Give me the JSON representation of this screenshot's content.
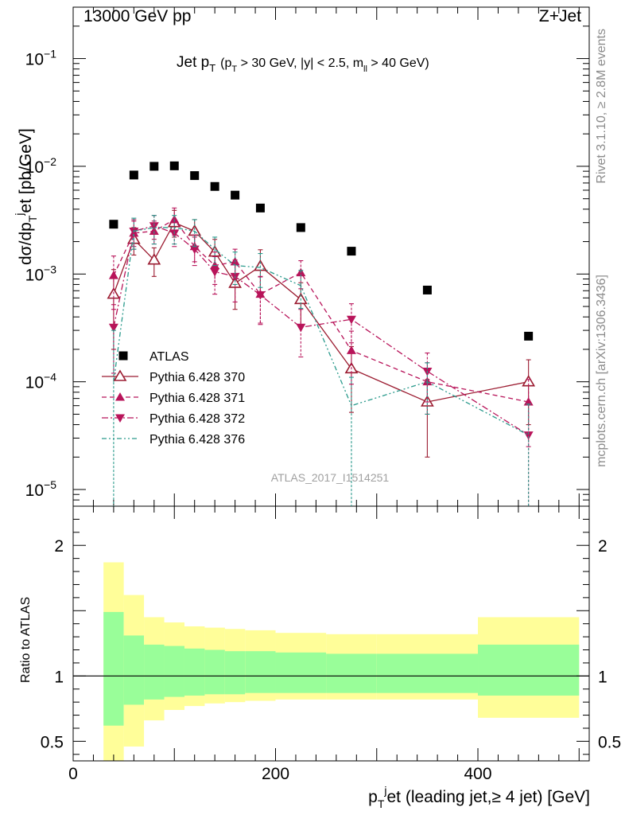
{
  "header": {
    "left": "13000 GeV pp",
    "right": "Z+Jet"
  },
  "side_labels": {
    "rivet": "Rivet 3.1.10, ≥ 2.8M events",
    "mcplots": "mcplots.cern.ch [arXiv:1306.3436]"
  },
  "chart_data": [
    {
      "type": "scatter",
      "title": "Jet pT (pT > 30 GeV, |y| < 2.5, mll > 40 GeV)",
      "title_main": "Jet p",
      "title_main_sub": "T",
      "title_cond_1": "(p",
      "title_cond_1_sub": "T",
      "title_cond_2": " > 30 GeV, |y| < 2.5, m",
      "title_cond_2_sub": "ll",
      "title_cond_3": " > 40 GeV)",
      "ylabel": "dσ/dp_T^jet [pb/GeV]",
      "ylabel_parts": [
        "dσ/dp",
        "T",
        "j",
        "et [pb/GeV]"
      ],
      "yscale": "log",
      "xlim": [
        0,
        510
      ],
      "ylim": [
        7e-06,
        0.3
      ],
      "yticks": [
        {
          "value": 1e-05,
          "mant": "10",
          "exp": "−5"
        },
        {
          "value": 0.0001,
          "mant": "10",
          "exp": "−4"
        },
        {
          "value": 0.001,
          "mant": "10",
          "exp": "−3"
        },
        {
          "value": 0.01,
          "mant": "10",
          "exp": "−2"
        },
        {
          "value": 0.1,
          "mant": "10",
          "exp": "−1"
        }
      ],
      "watermark": "ATLAS_2017_I1514251",
      "legend_position": "lower-left",
      "series": [
        {
          "name": "ATLAS",
          "color": "#000000",
          "marker": "square",
          "x": [
            40,
            60,
            80,
            100,
            120,
            140,
            160,
            185,
            225,
            275,
            350,
            450
          ],
          "y": [
            0.0029,
            0.0083,
            0.01,
            0.0101,
            0.0082,
            0.0065,
            0.0054,
            0.0041,
            0.0027,
            0.00163,
            0.00071,
            0.000265
          ]
        },
        {
          "name": "Pythia 6.428 370",
          "color": "#9b1b30",
          "marker": "open-triangle-up",
          "linestyle": "solid",
          "x": [
            40,
            60,
            80,
            100,
            120,
            140,
            160,
            185,
            225,
            275,
            350,
            450
          ],
          "y": [
            0.00065,
            0.0021,
            0.00135,
            0.003,
            0.0025,
            0.0016,
            0.00082,
            0.00118,
            0.00058,
            0.000132,
            6.5e-05,
            0.0001
          ],
          "err_up": [
            0.00045,
            0.0006,
            0.0004,
            0.0009,
            0.0007,
            0.0005,
            0.0004,
            0.0005,
            0.00025,
            8e-05,
            4e-05,
            6e-05
          ],
          "err_down": [
            0.00045,
            0.0006,
            0.0004,
            0.0008,
            0.0007,
            0.0005,
            0.00035,
            0.0005,
            0.00025,
            8e-05,
            4.5e-05,
            6e-05
          ]
        },
        {
          "name": "Pythia 6.428 371",
          "color": "#b8145a",
          "marker": "triangle-up",
          "linestyle": "dashed",
          "x": [
            40,
            60,
            80,
            100,
            120,
            140,
            160,
            185,
            225,
            275,
            350,
            450
          ],
          "y": [
            0.00097,
            0.0024,
            0.0025,
            0.0032,
            0.0018,
            0.0012,
            0.0013,
            0.00065,
            0.00103,
            0.000195,
            0.0001,
            6.5e-05
          ],
          "err_up": [
            0.0005,
            0.0007,
            0.0006,
            0.0009,
            0.0005,
            0.0004,
            0.0004,
            0.0003,
            0.0003,
            0.0001,
            5e-05,
            4e-05
          ],
          "err_down": [
            0.0005,
            0.0007,
            0.0006,
            0.0009,
            0.0005,
            0.0004,
            0.0004,
            0.0003,
            0.0003,
            0.0001,
            5e-05,
            4e-05
          ]
        },
        {
          "name": "Pythia 6.428 372",
          "color": "#b8145a",
          "marker": "triangle-down",
          "linestyle": "dashdot",
          "x": [
            40,
            60,
            80,
            100,
            120,
            140,
            160,
            185,
            225,
            275,
            350,
            450
          ],
          "y": [
            0.00032,
            0.0025,
            0.0028,
            0.0024,
            0.0017,
            0.00105,
            0.00095,
            0.00064,
            0.00032,
            0.00038,
            0.000125,
            3.2e-05
          ],
          "err_up": [
            0.0002,
            0.0007,
            0.0007,
            0.0006,
            0.0005,
            0.0004,
            0.0004,
            0.0003,
            0.00015,
            0.00015,
            6e-05,
            3e-05
          ],
          "err_down": [
            0.0002,
            0.0007,
            0.0007,
            0.0006,
            0.0005,
            0.0004,
            0.0004,
            0.0003,
            0.00015,
            0.00015,
            6e-05,
            3e-05
          ]
        },
        {
          "name": "Pythia 6.428 376",
          "color": "#2a9a8c",
          "marker": "none",
          "linestyle": "dashdotdot",
          "x": [
            40,
            60,
            80,
            100,
            120,
            140,
            160,
            185,
            225,
            275,
            350,
            450
          ],
          "y": [
            0.0001,
            0.0025,
            0.0027,
            0.0027,
            0.0025,
            0.0017,
            0.0012,
            0.00115,
            0.00078,
            6e-05,
            0.0001,
            3.2e-05
          ],
          "err_up": [
            0.0002,
            0.0008,
            0.0008,
            0.0008,
            0.0007,
            0.0005,
            0.0004,
            0.0004,
            0.0003,
            5e-05,
            5e-05,
            3e-05
          ],
          "err_down": [
            0.0001,
            0.0008,
            0.0008,
            0.0008,
            0.0007,
            0.0005,
            0.0004,
            0.0004,
            0.0003,
            6e-05,
            5e-05,
            3.2e-05
          ]
        }
      ]
    },
    {
      "type": "area",
      "ylabel": "Ratio to ATLAS",
      "xlabel": "p_T^jet (leading jet,≥ 4 jet) [GeV]",
      "xlabel_parts": [
        "p",
        "T",
        "j",
        "et (leading jet,≥ 4 jet) [GeV]"
      ],
      "xlim": [
        0,
        510
      ],
      "ylim": [
        0.35,
        2.3
      ],
      "xticks": [
        0,
        200,
        400
      ],
      "yticks": [
        0.5,
        1,
        2
      ],
      "reference_line": 1,
      "bands": {
        "bin_edges": [
          30,
          50,
          70,
          90,
          110,
          130,
          150,
          170,
          200,
          250,
          300,
          400,
          500
        ],
        "yellow_color": "#fffe99",
        "green_color": "#99fe99",
        "yellow_up": [
          1.87,
          1.62,
          1.45,
          1.41,
          1.38,
          1.37,
          1.36,
          1.35,
          1.33,
          1.32,
          1.32,
          1.45
        ],
        "yellow_down": [
          0.35,
          0.46,
          0.66,
          0.74,
          0.77,
          0.79,
          0.8,
          0.81,
          0.82,
          0.82,
          0.82,
          0.68
        ],
        "green_up": [
          1.49,
          1.31,
          1.24,
          1.23,
          1.21,
          1.2,
          1.19,
          1.19,
          1.18,
          1.17,
          1.17,
          1.24
        ],
        "green_down": [
          0.62,
          0.78,
          0.82,
          0.84,
          0.85,
          0.86,
          0.86,
          0.87,
          0.87,
          0.87,
          0.87,
          0.85
        ]
      }
    }
  ]
}
